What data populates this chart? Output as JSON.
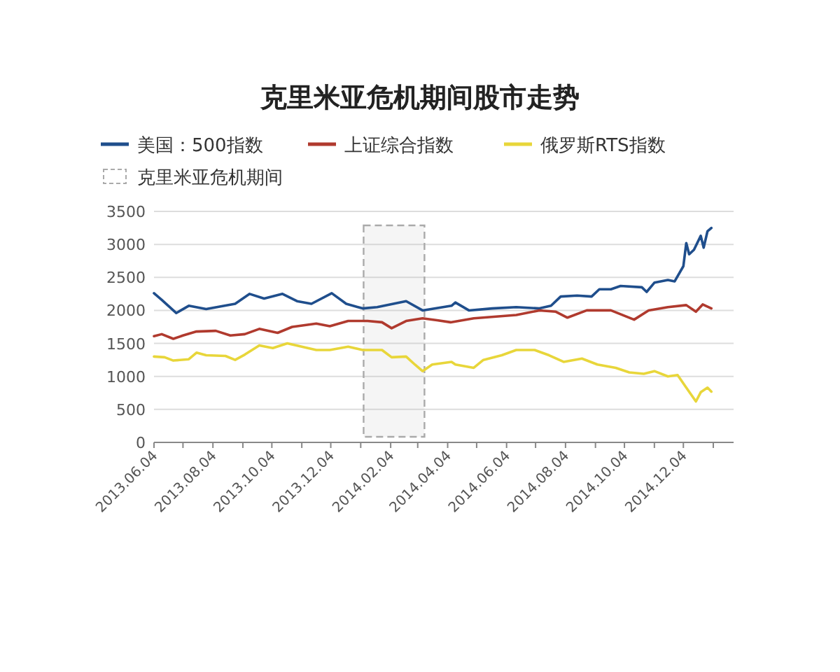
{
  "chart_data": {
    "type": "line",
    "title": "克里米亚危机期间股市走势",
    "x": [
      "2013-06-04",
      "2013-06-12",
      "2013-06-27",
      "2013-07-10",
      "2013-07-28",
      "2013-08-27",
      "2013-09-11",
      "2013-09-26",
      "2013-10-15",
      "2013-10-30",
      "2013-11-14",
      "2013-12-05",
      "2013-12-20",
      "2014-01-06",
      "2014-01-21",
      "2014-02-20",
      "2014-03-09",
      "2014-04-08",
      "2014-04-12",
      "2014-04-26",
      "2014-05-20",
      "2014-06-14",
      "2014-07-08",
      "2014-07-20",
      "2014-07-30",
      "2014-08-16",
      "2014-08-31",
      "2014-09-08",
      "2014-09-20",
      "2014-09-30",
      "2014-10-22",
      "2014-10-27",
      "2014-11-04",
      "2014-11-18",
      "2014-11-25",
      "2014-12-04",
      "2014-12-07",
      "2014-12-10",
      "2014-12-15",
      "2014-12-22",
      "2014-12-25",
      "2014-12-29",
      "2015-01-02"
    ],
    "xlim": [
      "2013-06-04",
      "2015-01-25"
    ],
    "xticks": [
      {
        "value": "2013-06-04",
        "label": "2013.06.04"
      },
      {
        "value": "2013-07-04",
        "label": null
      },
      {
        "value": "2013-08-04",
        "label": "2013.08.04"
      },
      {
        "value": "2013-09-04",
        "label": null
      },
      {
        "value": "2013-10-04",
        "label": "2013.10.04"
      },
      {
        "value": "2013-11-04",
        "label": null
      },
      {
        "value": "2013-12-04",
        "label": "2013.12.04"
      },
      {
        "value": "2014-01-04",
        "label": null
      },
      {
        "value": "2014-02-04",
        "label": "2014.02.04"
      },
      {
        "value": "2014-03-04",
        "label": null
      },
      {
        "value": "2014-04-04",
        "label": "2014.04.04"
      },
      {
        "value": "2014-05-04",
        "label": null
      },
      {
        "value": "2014-06-04",
        "label": "2014.06.04"
      },
      {
        "value": "2014-07-04",
        "label": null
      },
      {
        "value": "2014-08-04",
        "label": "2014.08.04"
      },
      {
        "value": "2014-09-04",
        "label": null
      },
      {
        "value": "2014-10-04",
        "label": "2014.10.04"
      },
      {
        "value": "2014-11-04",
        "label": null
      },
      {
        "value": "2014-12-04",
        "label": "2014.12.04"
      },
      {
        "value": "2015-01-04",
        "label": null
      }
    ],
    "ylim": [
      0,
      3500
    ],
    "yticks": [
      0,
      500,
      1000,
      1500,
      2000,
      2500,
      3000,
      3500
    ],
    "grid": "y",
    "legend": "top left",
    "marker": "none",
    "series": [
      {
        "name": "美国：500指数",
        "color": "#1f4e8c",
        "values": [
          2260,
          2160,
          1960,
          2070,
          2020,
          2100,
          2250,
          2180,
          2250,
          2140,
          2100,
          2260,
          2100,
          2030,
          2050,
          2140,
          2000,
          2070,
          2120,
          2000,
          2030,
          2050,
          2030,
          2070,
          2210,
          2225,
          2210,
          2320,
          2320,
          2370,
          2350,
          2280,
          2420,
          2460,
          2440,
          2670,
          3020,
          2850,
          2920,
          3130,
          2950,
          3200,
          3250
        ]
      },
      {
        "name": "上证综合指数",
        "color": "#b03a2e",
        "x": [
          "2013-06-04",
          "2013-06-12",
          "2013-06-24",
          "2013-07-04",
          "2013-07-18",
          "2013-08-07",
          "2013-08-22",
          "2013-09-06",
          "2013-09-21",
          "2013-10-10",
          "2013-10-25",
          "2013-11-19",
          "2013-12-03",
          "2013-12-22",
          "2014-01-11",
          "2014-01-26",
          "2014-02-05",
          "2014-02-20",
          "2014-03-09",
          "2014-03-24",
          "2014-04-07",
          "2014-05-01",
          "2014-06-14",
          "2014-07-08",
          "2014-07-25",
          "2014-08-06",
          "2014-08-26",
          "2014-09-20",
          "2014-10-14",
          "2014-10-29",
          "2014-11-18",
          "2014-12-07",
          "2014-12-17",
          "2014-12-24",
          "2015-01-02"
        ],
        "values": [
          1610,
          1640,
          1570,
          1620,
          1680,
          1690,
          1620,
          1640,
          1720,
          1660,
          1750,
          1800,
          1760,
          1840,
          1840,
          1820,
          1730,
          1840,
          1880,
          1850,
          1820,
          1880,
          1930,
          2000,
          1980,
          1890,
          2000,
          2000,
          1860,
          2000,
          2050,
          2080,
          1980,
          2090,
          2030
        ]
      },
      {
        "name": "俄罗斯RTS指数",
        "color": "#e8d63a",
        "x": [
          "2013-06-04",
          "2013-06-15",
          "2013-06-24",
          "2013-07-10",
          "2013-07-18",
          "2013-07-28",
          "2013-08-17",
          "2013-08-27",
          "2013-09-06",
          "2013-09-21",
          "2013-10-05",
          "2013-10-20",
          "2013-11-04",
          "2013-11-19",
          "2013-12-03",
          "2013-12-22",
          "2014-01-06",
          "2014-01-26",
          "2014-02-05",
          "2014-02-20",
          "2014-03-01",
          "2014-03-09",
          "2014-03-19",
          "2014-04-08",
          "2014-04-12",
          "2014-05-01",
          "2014-05-11",
          "2014-05-30",
          "2014-06-14",
          "2014-07-03",
          "2014-07-18",
          "2014-08-02",
          "2014-08-21",
          "2014-09-06",
          "2014-09-25",
          "2014-10-09",
          "2014-10-24",
          "2014-11-04",
          "2014-11-18",
          "2014-11-28",
          "2014-12-07",
          "2014-12-17",
          "2014-12-22",
          "2014-12-29",
          "2015-01-02"
        ],
        "values": [
          1300,
          1290,
          1240,
          1260,
          1360,
          1320,
          1310,
          1250,
          1330,
          1470,
          1430,
          1500,
          1450,
          1400,
          1400,
          1450,
          1400,
          1400,
          1290,
          1300,
          1180,
          1080,
          1180,
          1220,
          1180,
          1130,
          1250,
          1320,
          1400,
          1400,
          1320,
          1220,
          1270,
          1180,
          1130,
          1060,
          1040,
          1080,
          1000,
          1020,
          830,
          620,
          760,
          830,
          770
        ]
      }
    ],
    "bands": [
      {
        "axis": "x",
        "from": "2014-01-07",
        "to": "2014-03-11",
        "label": "克里米亚危机期间",
        "color": "#aaaaaa"
      }
    ]
  }
}
